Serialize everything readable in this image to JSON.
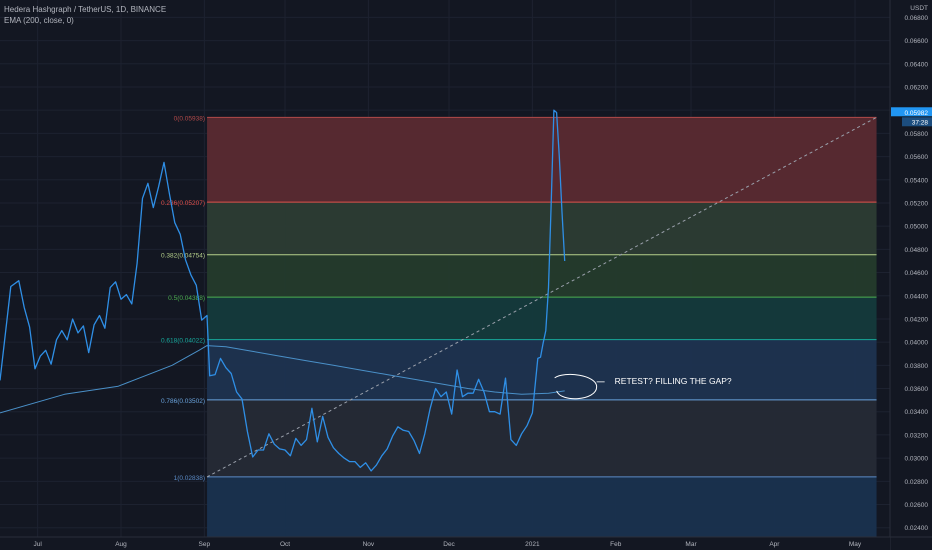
{
  "legend": {
    "symbol": "Hedera Hashgraph / TetherUS, 1D, BINANCE",
    "indicator": "EMA (200, close, 0)"
  },
  "axis": {
    "currency": "USDT",
    "price_ticks": [
      "0.06800",
      "0.06600",
      "0.06400",
      "0.06200",
      "0.06000",
      "0.05800",
      "0.05600",
      "0.05400",
      "0.05200",
      "0.05000",
      "0.04800",
      "0.04600",
      "0.04400",
      "0.04200",
      "0.04000",
      "0.03800",
      "0.03600",
      "0.03400",
      "0.03200",
      "0.03000",
      "0.02800",
      "0.02600",
      "0.02400"
    ],
    "price_tick_values": [
      0.068,
      0.066,
      0.064,
      0.062,
      0.06,
      0.058,
      0.056,
      0.054,
      0.052,
      0.05,
      0.048,
      0.046,
      0.044,
      0.042,
      0.04,
      0.038,
      0.036,
      0.034,
      0.032,
      0.03,
      0.028,
      0.026,
      0.024
    ],
    "last_price_label": "0.05982",
    "last_price": 0.05982,
    "countdown_label": "37:28",
    "time_ticks": [
      "Jul",
      "Aug",
      "Sep",
      "Oct",
      "Nov",
      "Dec",
      "2021",
      "Feb",
      "Mar",
      "Apr",
      "May"
    ],
    "time_tick_days": [
      0,
      31,
      62,
      92,
      123,
      153,
      184,
      215,
      243,
      274,
      304
    ]
  },
  "annotation": "RETEST? FILLING THE GAP?",
  "colors": {
    "background": "#131722",
    "price_line": "#2f8fe6",
    "ema_line": "#4a90c8",
    "last_price_badge": "#2196f3",
    "fib_0": "#b24a4a",
    "fib_0236": "#e0504c",
    "fib_0382": "#b5cf8a",
    "fib_05": "#4caf50",
    "fib_0618": "#16a89b",
    "fib_0786": "#6aa3dc",
    "fib_1": "#5b8bc7"
  },
  "chart_data": {
    "type": "line",
    "x_unit": "days since Jul 1, 2020",
    "y_unit": "USDT",
    "ylim": [
      0.0232,
      0.0695
    ],
    "xlim": [
      -14,
      317
    ],
    "series": [
      {
        "name": "Hedera Hashgraph / TetherUS",
        "x": [
          -14,
          -10,
          -7,
          -5,
          -3,
          -1,
          1,
          3,
          5,
          7,
          9,
          11,
          13,
          15,
          17,
          19,
          21,
          23,
          25,
          27,
          29,
          31,
          33,
          35,
          37,
          39,
          41,
          43,
          45,
          47,
          49,
          51,
          53,
          55,
          57,
          59,
          61,
          63,
          64,
          66,
          68,
          70,
          72,
          74,
          76,
          78,
          80,
          82,
          84,
          86,
          88,
          90,
          92,
          94,
          96,
          98,
          100,
          102,
          104,
          106,
          108,
          110,
          112,
          114,
          116,
          118,
          120,
          122,
          124,
          126,
          128,
          130,
          132,
          134,
          136,
          138,
          140,
          142,
          144,
          146,
          148,
          150,
          152,
          154,
          156,
          158,
          160,
          162,
          164,
          166,
          168,
          170,
          172,
          174,
          176,
          178,
          180,
          182,
          184,
          186,
          187,
          188,
          189,
          190,
          191,
          192,
          193,
          194,
          195,
          196
        ],
        "y": [
          0.0367,
          0.0448,
          0.0453,
          0.043,
          0.0413,
          0.0377,
          0.0388,
          0.0393,
          0.0381,
          0.0402,
          0.041,
          0.0402,
          0.042,
          0.0408,
          0.0414,
          0.0391,
          0.0415,
          0.0423,
          0.0412,
          0.0447,
          0.0452,
          0.0437,
          0.0441,
          0.0433,
          0.0468,
          0.0524,
          0.0537,
          0.0516,
          0.0534,
          0.0555,
          0.0528,
          0.0503,
          0.0493,
          0.0471,
          0.0458,
          0.0449,
          0.0419,
          0.0423,
          0.0371,
          0.0372,
          0.0386,
          0.0378,
          0.0373,
          0.0357,
          0.0351,
          0.0323,
          0.0301,
          0.0307,
          0.0307,
          0.0321,
          0.0312,
          0.0308,
          0.0307,
          0.0302,
          0.0317,
          0.0311,
          0.0316,
          0.0343,
          0.0314,
          0.0336,
          0.0318,
          0.0309,
          0.0304,
          0.03,
          0.0297,
          0.0297,
          0.0292,
          0.0296,
          0.0289,
          0.0294,
          0.0302,
          0.0308,
          0.0319,
          0.0327,
          0.0324,
          0.0323,
          0.0315,
          0.0304,
          0.0321,
          0.0343,
          0.036,
          0.0353,
          0.0357,
          0.0338,
          0.0376,
          0.0353,
          0.0356,
          0.0356,
          0.0368,
          0.0357,
          0.034,
          0.034,
          0.0338,
          0.0369,
          0.0316,
          0.0311,
          0.0321,
          0.0328,
          0.0339,
          0.0386,
          0.0387,
          0.0399,
          0.041,
          0.0447,
          0.052,
          0.06,
          0.0598,
          0.056,
          0.0512,
          0.047
        ]
      },
      {
        "name": "EMA (200, close, 0)",
        "x": [
          -14,
          10,
          30,
          50,
          60,
          63,
          70,
          80,
          90,
          100,
          110,
          120,
          130,
          140,
          150,
          160,
          170,
          180,
          190,
          196
        ],
        "y": [
          0.0339,
          0.0355,
          0.0362,
          0.038,
          0.0393,
          0.0397,
          0.0396,
          0.0392,
          0.0388,
          0.0384,
          0.038,
          0.0376,
          0.0372,
          0.0368,
          0.0364,
          0.036,
          0.0357,
          0.0355,
          0.0356,
          0.0358
        ]
      }
    ],
    "fib_levels": [
      {
        "ratio": 0.0,
        "label": "0(0.05938)",
        "price": 0.05938
      },
      {
        "ratio": 0.236,
        "label": "0.236(0.05207)",
        "price": 0.05207
      },
      {
        "ratio": 0.382,
        "label": "0.382(0.04754)",
        "price": 0.04754
      },
      {
        "ratio": 0.5,
        "label": "0.5(0.04388)",
        "price": 0.04388
      },
      {
        "ratio": 0.618,
        "label": "0.618(0.04022)",
        "price": 0.04022
      },
      {
        "ratio": 0.786,
        "label": "0.786(0.03502)",
        "price": 0.03502
      },
      {
        "ratio": 1.0,
        "label": "1(0.02838)",
        "price": 0.02838
      }
    ],
    "fib_x_range": [
      63,
      312
    ],
    "trend_line": {
      "x": [
        63,
        312
      ],
      "y": [
        0.02838,
        0.05938
      ]
    },
    "annotation_circle": {
      "x": 196,
      "y": 0.0358
    }
  }
}
